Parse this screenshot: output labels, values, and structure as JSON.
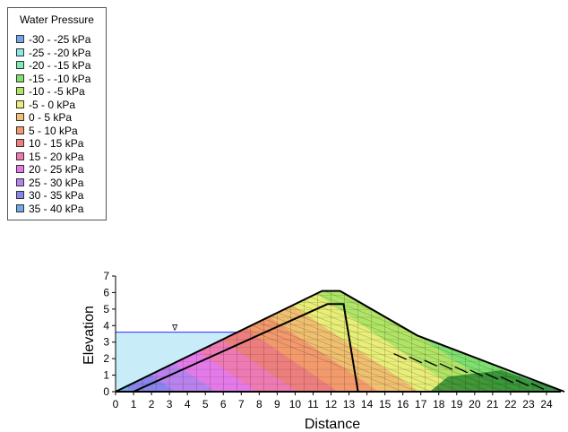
{
  "legend": {
    "title": "Water Pressure",
    "items": [
      {
        "label": "-30 - -25 kPa",
        "color": "#6fa7e8"
      },
      {
        "label": "-25 - -20 kPa",
        "color": "#8be6e8"
      },
      {
        "label": "-20 - -15 kPa",
        "color": "#7fe8b4"
      },
      {
        "label": "-15 - -10 kPa",
        "color": "#7fe070"
      },
      {
        "label": "-10 - -5 kPa",
        "color": "#b0e466"
      },
      {
        "label": "-5 - 0 kPa",
        "color": "#e8ee78"
      },
      {
        "label": "0 - 5 kPa",
        "color": "#f0c070"
      },
      {
        "label": "5 - 10 kPa",
        "color": "#f29a6c"
      },
      {
        "label": "10 - 15 kPa",
        "color": "#ec7e7e"
      },
      {
        "label": "15 - 20 kPa",
        "color": "#ee7ab4"
      },
      {
        "label": "20 - 25 kPa",
        "color": "#e47ae8"
      },
      {
        "label": "25 - 30 kPa",
        "color": "#b882ec"
      },
      {
        "label": "30 - 35 kPa",
        "color": "#8a84ea"
      },
      {
        "label": "35 - 40 kPa",
        "color": "#6ea8e8"
      }
    ]
  },
  "chart_data": {
    "type": "contour",
    "xlabel": "Distance",
    "ylabel": "Elevation",
    "xlim": [
      0,
      24
    ],
    "ylim": [
      0,
      7
    ],
    "x_ticks": [
      0,
      1,
      2,
      3,
      4,
      5,
      6,
      7,
      8,
      9,
      10,
      11,
      12,
      13,
      14,
      15,
      16,
      17,
      18,
      19,
      20,
      21,
      22,
      23,
      24
    ],
    "y_ticks": [
      0,
      1,
      2,
      3,
      4,
      5,
      6,
      7
    ],
    "embankment": [
      [
        0,
        0
      ],
      [
        11.5,
        6.1
      ],
      [
        12.5,
        6.1
      ],
      [
        16.8,
        3.4
      ],
      [
        25,
        0
      ]
    ],
    "core": [
      [
        1,
        0
      ],
      [
        11.8,
        5.3
      ],
      [
        12.7,
        5.3
      ],
      [
        13.5,
        0
      ]
    ],
    "upstream_water": {
      "level": 3.6,
      "x_start": 0,
      "x_end": 7.2,
      "color": "#c8ecf8"
    },
    "pressure_bands": [
      {
        "min": 35,
        "max": 40,
        "color": "#6ea8e8"
      },
      {
        "min": 30,
        "max": 35,
        "color": "#8a84ea"
      },
      {
        "min": 25,
        "max": 30,
        "color": "#b882ec"
      },
      {
        "min": 20,
        "max": 25,
        "color": "#e47ae8"
      },
      {
        "min": 15,
        "max": 20,
        "color": "#ee7ab4"
      },
      {
        "min": 10,
        "max": 15,
        "color": "#ec7e7e"
      },
      {
        "min": 5,
        "max": 10,
        "color": "#f29a6c"
      },
      {
        "min": 0,
        "max": 5,
        "color": "#f0c070"
      },
      {
        "min": -5,
        "max": 0,
        "color": "#e8ee78"
      },
      {
        "min": -10,
        "max": -5,
        "color": "#b0e466"
      },
      {
        "min": -15,
        "max": -10,
        "color": "#7fe070"
      },
      {
        "min": -20,
        "max": -15,
        "color": "#7fe8b4"
      }
    ],
    "toe_region_color": "#2f8a2f"
  }
}
